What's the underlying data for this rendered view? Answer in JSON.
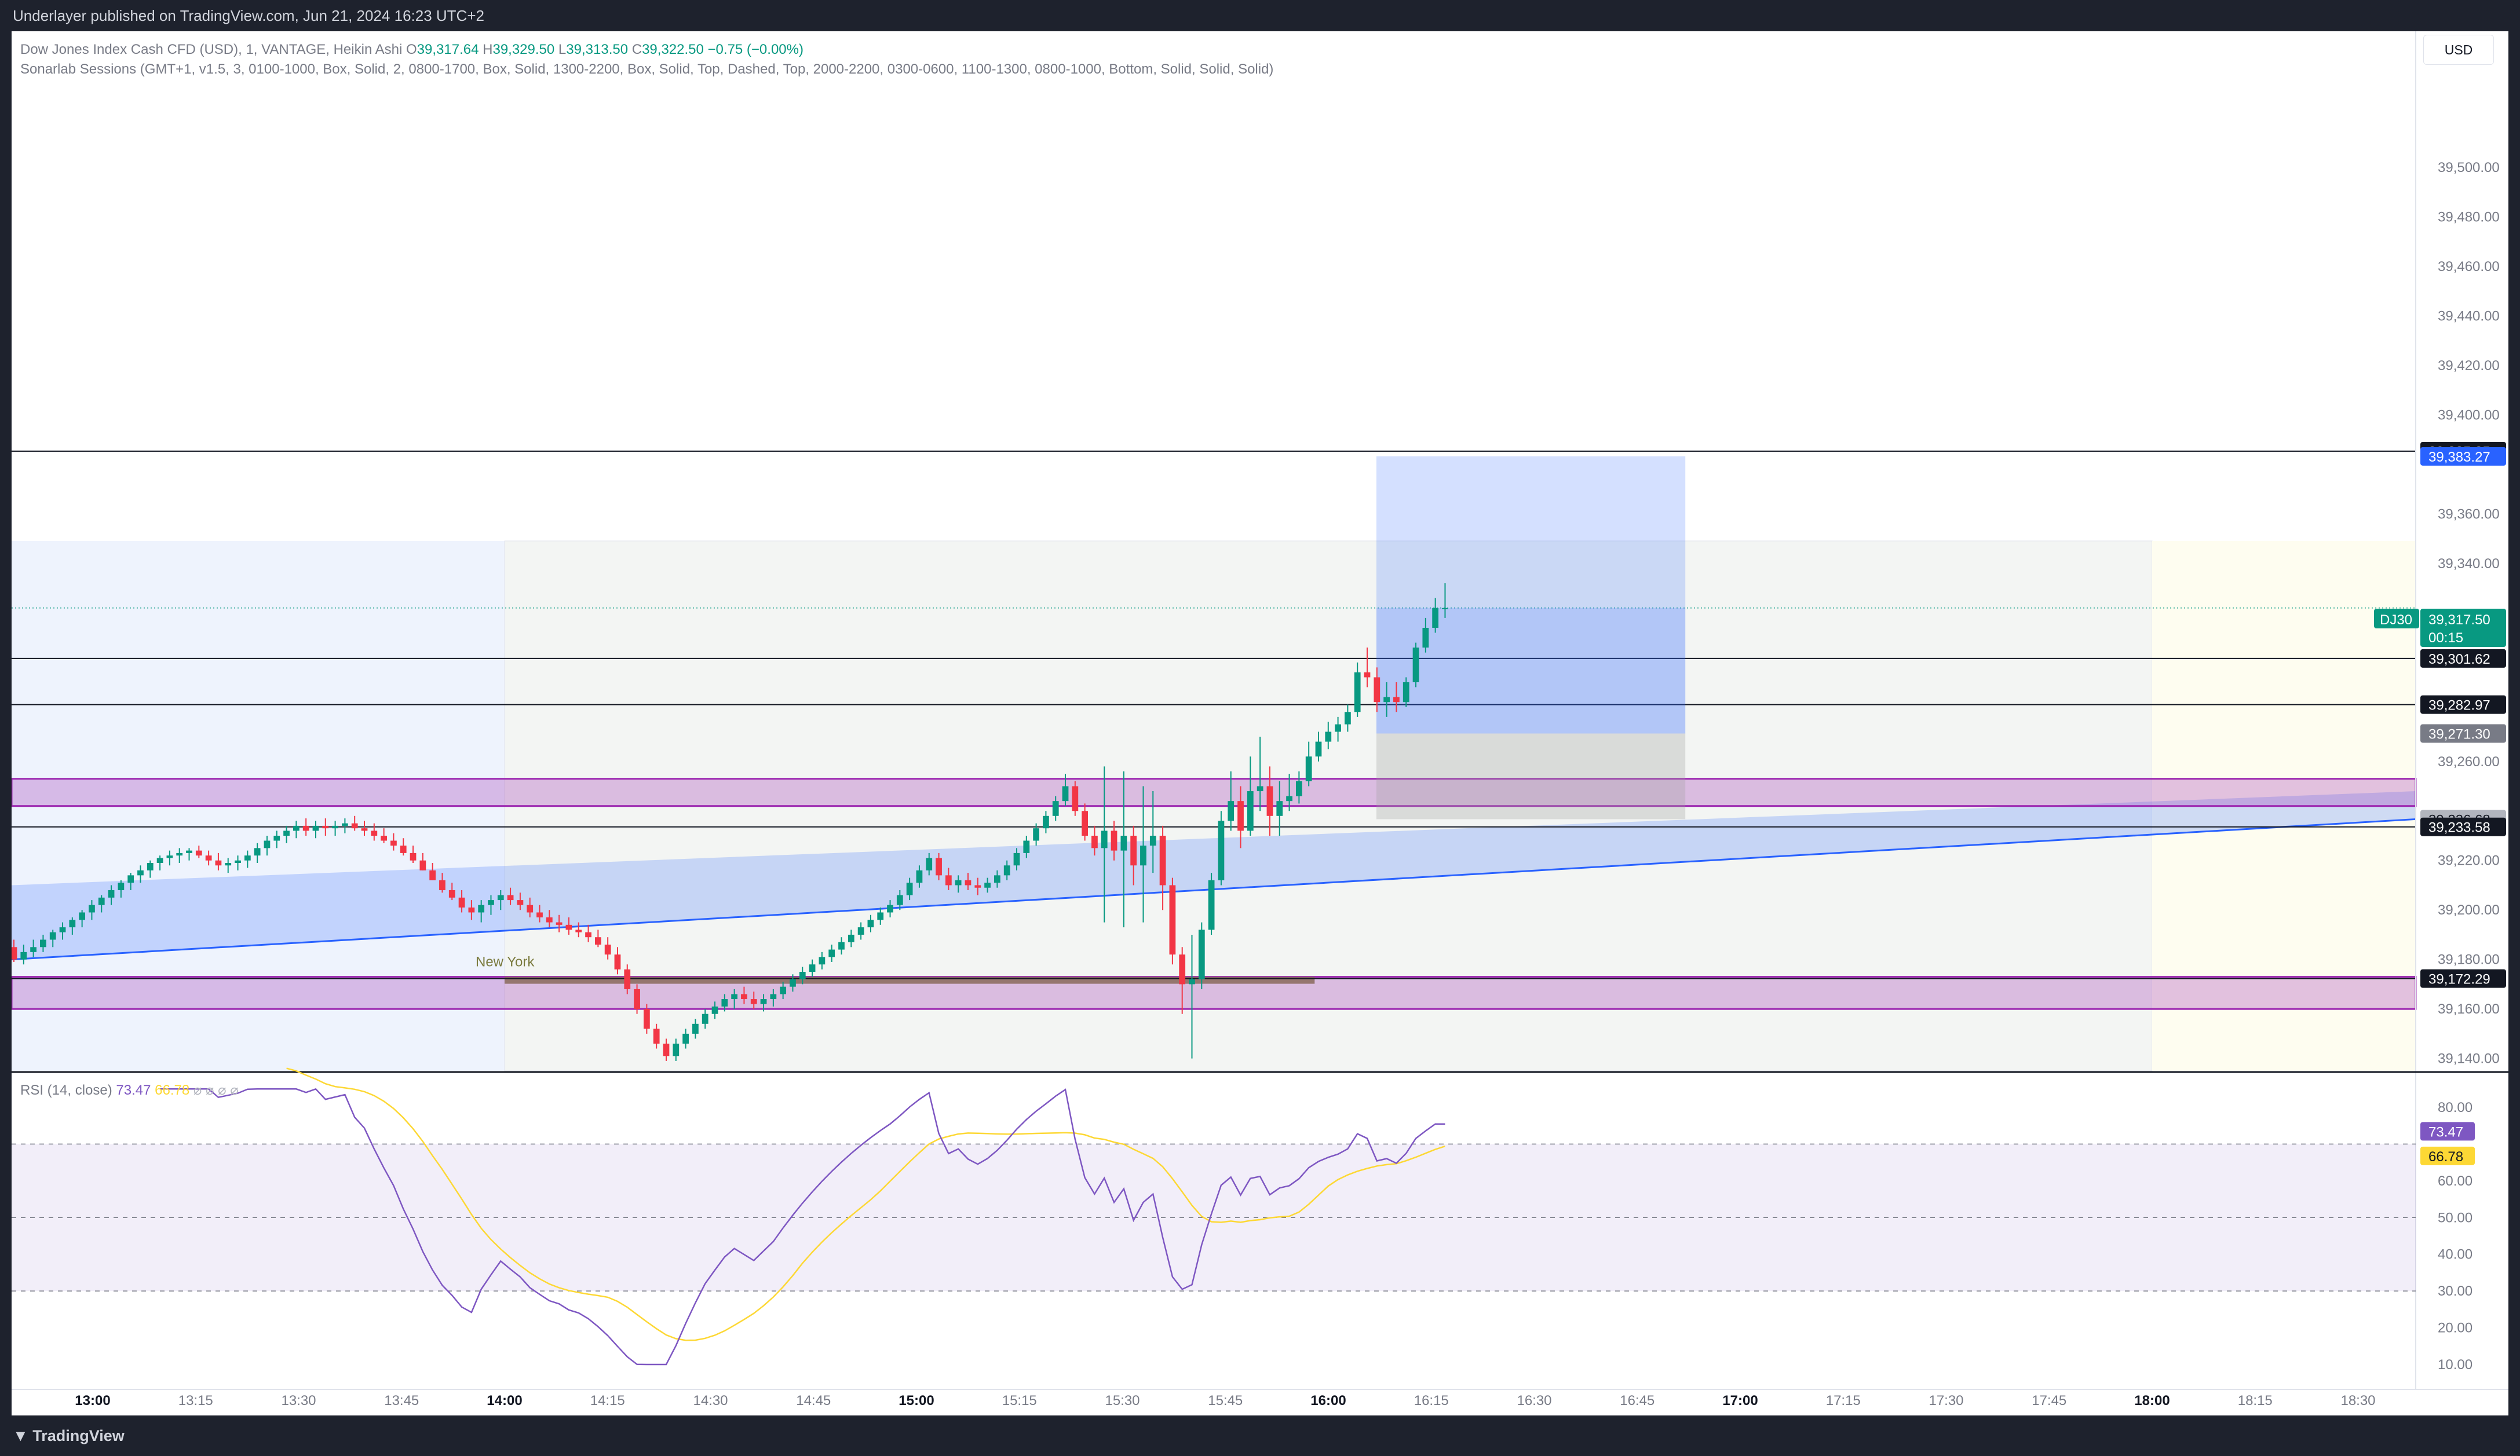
{
  "publisher_line": "Underlayer published on TradingView.com, Jun 21, 2024 16:23 UTC+2",
  "legend": {
    "symbol": "Dow Jones Index Cash CFD (USD), 1, VANTAGE, Heikin Ashi",
    "o_label": "O",
    "o": "39,317.64",
    "h_label": "H",
    "h": "39,329.50",
    "l_label": "L",
    "l": "39,313.50",
    "c_label": "C",
    "c": "39,322.50",
    "change": "−0.75 (−0.00%)",
    "indicator": "Sonarlab Sessions (GMT+1, v1.5, 3, 0100-1000, Box, Solid, 2, 0800-1700, Box, Solid, 1300-2200, Box, Solid, Top, Dashed, Top, 2000-2200, 0300-0600, 1100-1300, 0800-1000, Bottom, Solid, Solid, Solid)"
  },
  "currency": "USD",
  "session_label": "New York",
  "footer_brand": "TradingView",
  "colors": {
    "up": "#089981",
    "down": "#f23645",
    "blue": "#2962ff",
    "purple": "#9c27b0",
    "rsi": "#7e57c2",
    "rsi_ma": "#fdd835",
    "grid_text": "#787b86"
  },
  "price_axis": {
    "ticks": [
      "39,500.00",
      "39,480.00",
      "39,460.00",
      "39,440.00",
      "39,420.00",
      "39,400.00",
      "39,360.00",
      "39,340.00",
      "39,260.00",
      "39,220.00",
      "39,200.00",
      "39,180.00",
      "39,160.00",
      "39,140.00"
    ],
    "tick_values": [
      39500,
      39480,
      39460,
      39440,
      39420,
      39400,
      39360,
      39340,
      39260,
      39220,
      39200,
      39180,
      39160,
      39140
    ]
  },
  "price_labels": [
    {
      "text": "39,385.35",
      "value": 39385.35,
      "bg": "#131722",
      "fg": "#ffffff"
    },
    {
      "text": "39,383.27",
      "value": 39383.27,
      "bg": "#2962ff",
      "fg": "#ffffff"
    },
    {
      "text": "39,301.62",
      "value": 39301.62,
      "bg": "#131722",
      "fg": "#ffffff"
    },
    {
      "text": "39,282.97",
      "value": 39282.97,
      "bg": "#131722",
      "fg": "#ffffff"
    },
    {
      "text": "39,271.30",
      "value": 39271.3,
      "bg": "#787b86",
      "fg": "#ffffff"
    },
    {
      "text": "39,236.68",
      "value": 39236.68,
      "bg": "#b2b5be",
      "fg": "#131722"
    },
    {
      "text": "39,233.58",
      "value": 39233.58,
      "bg": "#131722",
      "fg": "#ffffff"
    },
    {
      "text": "39,172.29",
      "value": 39172.29,
      "bg": "#131722",
      "fg": "#ffffff"
    }
  ],
  "last_price": {
    "symbol": "DJ30",
    "price": "39,317.50",
    "countdown": "00:15",
    "value": 39317.5
  },
  "rsi": {
    "legend_name": "RSI (14, close)",
    "value": "73.47",
    "ma_value": "66.78",
    "axis_ticks": [
      "80.00",
      "60.00",
      "50.00",
      "40.00",
      "30.00",
      "20.00",
      "10.00"
    ],
    "axis_values": [
      80,
      60,
      50,
      40,
      30,
      20,
      10
    ],
    "upper": 70,
    "middle": 50,
    "lower": 30
  },
  "time_axis": {
    "labels": [
      "13:00",
      "13:15",
      "13:30",
      "13:45",
      "14:00",
      "14:15",
      "14:30",
      "14:45",
      "15:00",
      "15:15",
      "15:30",
      "15:45",
      "16:00",
      "16:15",
      "16:30",
      "16:45",
      "17:00",
      "17:15",
      "17:30",
      "17:45",
      "18:00",
      "18:15",
      "18:30"
    ],
    "bold": [
      "13:00",
      "14:00",
      "15:00",
      "16:00",
      "17:00",
      "18:00"
    ]
  },
  "chart_data": {
    "type": "candlestick",
    "chart_style": "Heikin Ashi",
    "timeframe_minutes": 1,
    "x_start": "12:48",
    "x_end_visible": "18:40",
    "y_range": [
      39135,
      39555
    ],
    "candles_ohlc": [
      [
        39185,
        39188,
        39179,
        39180
      ],
      [
        39180,
        39186,
        39178,
        39183
      ],
      [
        39183,
        39188,
        39181,
        39185
      ],
      [
        39185,
        39190,
        39183,
        39188
      ],
      [
        39188,
        39192,
        39185,
        39191
      ],
      [
        39191,
        39195,
        39188,
        39193
      ],
      [
        39193,
        39197,
        39190,
        39196
      ],
      [
        39196,
        39200,
        39193,
        39199
      ],
      [
        39199,
        39204,
        39196,
        39202
      ],
      [
        39202,
        39206,
        39199,
        39205
      ],
      [
        39205,
        39210,
        39202,
        39208
      ],
      [
        39208,
        39212,
        39205,
        39211
      ],
      [
        39211,
        39215,
        39208,
        39214
      ],
      [
        39214,
        39218,
        39211,
        39216
      ],
      [
        39216,
        39220,
        39213,
        39219
      ],
      [
        39219,
        39222,
        39216,
        39221
      ],
      [
        39221,
        39224,
        39218,
        39222
      ],
      [
        39222,
        39225,
        39219,
        39223
      ],
      [
        39223,
        39225,
        39220,
        39224
      ],
      [
        39224,
        39226,
        39221,
        39222
      ],
      [
        39222,
        39224,
        39218,
        39220
      ],
      [
        39220,
        39223,
        39216,
        39218
      ],
      [
        39218,
        39221,
        39215,
        39219
      ],
      [
        39219,
        39222,
        39216,
        39220
      ],
      [
        39220,
        39224,
        39217,
        39222
      ],
      [
        39222,
        39227,
        39219,
        39225
      ],
      [
        39225,
        39230,
        39222,
        39228
      ],
      [
        39228,
        39232,
        39225,
        39230
      ],
      [
        39230,
        39234,
        39227,
        39232
      ],
      [
        39232,
        39236,
        39229,
        39234
      ],
      [
        39234,
        39237,
        39230,
        39232
      ],
      [
        39232,
        39236,
        39229,
        39234
      ],
      [
        39234,
        39237,
        39230,
        39233
      ],
      [
        39233,
        39236,
        39230,
        39234
      ],
      [
        39234,
        39237,
        39231,
        39235
      ],
      [
        39235,
        39238,
        39232,
        39233
      ],
      [
        39233,
        39236,
        39230,
        39232
      ],
      [
        39232,
        39235,
        39228,
        39230
      ],
      [
        39230,
        39233,
        39227,
        39228
      ],
      [
        39228,
        39231,
        39224,
        39226
      ],
      [
        39226,
        39229,
        39222,
        39223
      ],
      [
        39223,
        39226,
        39219,
        39220
      ],
      [
        39220,
        39223,
        39216,
        39216
      ],
      [
        39216,
        39219,
        39212,
        39212
      ],
      [
        39212,
        39215,
        39207,
        39208
      ],
      [
        39208,
        39211,
        39204,
        39205
      ],
      [
        39205,
        39208,
        39199,
        39201
      ],
      [
        39201,
        39204,
        39196,
        39199
      ],
      [
        39199,
        39204,
        39195,
        39202
      ],
      [
        39202,
        39206,
        39198,
        39204
      ],
      [
        39204,
        39208,
        39200,
        39206
      ],
      [
        39206,
        39209,
        39202,
        39204
      ],
      [
        39204,
        39207,
        39200,
        39202
      ],
      [
        39202,
        39205,
        39197,
        39199
      ],
      [
        39199,
        39202,
        39195,
        39197
      ],
      [
        39197,
        39200,
        39193,
        39195
      ],
      [
        39195,
        39198,
        39191,
        39194
      ],
      [
        39194,
        39197,
        39190,
        39192
      ],
      [
        39192,
        39195,
        39189,
        39191
      ],
      [
        39191,
        39194,
        39187,
        39189
      ],
      [
        39189,
        39192,
        39185,
        39186
      ],
      [
        39186,
        39189,
        39180,
        39182
      ],
      [
        39182,
        39185,
        39174,
        39176
      ],
      [
        39176,
        39178,
        39166,
        39168
      ],
      [
        39168,
        39170,
        39158,
        39160
      ],
      [
        39160,
        39162,
        39150,
        39152
      ],
      [
        39152,
        39154,
        39144,
        39146
      ],
      [
        39146,
        39148,
        39139,
        39141
      ],
      [
        39141,
        39148,
        39139,
        39146
      ],
      [
        39146,
        39152,
        39144,
        39150
      ],
      [
        39150,
        39156,
        39148,
        39154
      ],
      [
        39154,
        39160,
        39152,
        39158
      ],
      [
        39158,
        39163,
        39156,
        39161
      ],
      [
        39161,
        39166,
        39159,
        39164
      ],
      [
        39164,
        39168,
        39160,
        39166
      ],
      [
        39166,
        39169,
        39162,
        39164
      ],
      [
        39164,
        39167,
        39160,
        39162
      ],
      [
        39162,
        39166,
        39159,
        39164
      ],
      [
        39164,
        39168,
        39161,
        39166
      ],
      [
        39166,
        39171,
        39164,
        39169
      ],
      [
        39169,
        39174,
        39167,
        39172
      ],
      [
        39172,
        39177,
        39170,
        39175
      ],
      [
        39175,
        39180,
        39173,
        39178
      ],
      [
        39178,
        39183,
        39176,
        39181
      ],
      [
        39181,
        39186,
        39179,
        39184
      ],
      [
        39184,
        39189,
        39182,
        39187
      ],
      [
        39187,
        39192,
        39185,
        39190
      ],
      [
        39190,
        39195,
        39188,
        39193
      ],
      [
        39193,
        39198,
        39191,
        39196
      ],
      [
        39196,
        39201,
        39194,
        39199
      ],
      [
        39199,
        39204,
        39197,
        39202
      ],
      [
        39202,
        39208,
        39200,
        39206
      ],
      [
        39206,
        39213,
        39204,
        39211
      ],
      [
        39211,
        39218,
        39209,
        39216
      ],
      [
        39216,
        39223,
        39214,
        39221
      ],
      [
        39221,
        39223,
        39212,
        39214
      ],
      [
        39214,
        39217,
        39208,
        39210
      ],
      [
        39210,
        39214,
        39207,
        39212
      ],
      [
        39212,
        39215,
        39208,
        39210
      ],
      [
        39210,
        39213,
        39206,
        39209
      ],
      [
        39209,
        39213,
        39207,
        39211
      ],
      [
        39211,
        39216,
        39209,
        39214
      ],
      [
        39214,
        39220,
        39212,
        39218
      ],
      [
        39218,
        39225,
        39216,
        39223
      ],
      [
        39223,
        39230,
        39221,
        39228
      ],
      [
        39228,
        39235,
        39226,
        39233
      ],
      [
        39233,
        39240,
        39231,
        39238
      ],
      [
        39238,
        39246,
        39236,
        39244
      ],
      [
        39244,
        39255,
        39242,
        39250
      ],
      [
        39250,
        39252,
        39238,
        39240
      ],
      [
        39240,
        39243,
        39228,
        39230
      ],
      [
        39230,
        39234,
        39222,
        39225
      ],
      [
        39225,
        39258,
        39195,
        39232
      ],
      [
        39232,
        39236,
        39220,
        39224
      ],
      [
        39224,
        39256,
        39193,
        39230
      ],
      [
        39230,
        39234,
        39210,
        39218
      ],
      [
        39218,
        39250,
        39195,
        39226
      ],
      [
        39226,
        39248,
        39215,
        39230
      ],
      [
        39230,
        39234,
        39200,
        39210
      ],
      [
        39210,
        39213,
        39178,
        39182
      ],
      [
        39182,
        39185,
        39158,
        39170
      ],
      [
        39170,
        39190,
        39140,
        39172
      ],
      [
        39172,
        39195,
        39168,
        39192
      ],
      [
        39192,
        39215,
        39190,
        39212
      ],
      [
        39212,
        39240,
        39210,
        39236
      ],
      [
        39236,
        39256,
        39232,
        39244
      ],
      [
        39244,
        39250,
        39225,
        39232
      ],
      [
        39232,
        39262,
        39230,
        39248
      ],
      [
        39248,
        39270,
        39240,
        39250
      ],
      [
        39250,
        39258,
        39230,
        39238
      ],
      [
        39238,
        39252,
        39230,
        39244
      ],
      [
        39244,
        39255,
        39240,
        39246
      ],
      [
        39246,
        39256,
        39243,
        39252
      ],
      [
        39252,
        39268,
        39250,
        39262
      ],
      [
        39262,
        39272,
        39260,
        39268
      ],
      [
        39268,
        39276,
        39265,
        39272
      ],
      [
        39272,
        39278,
        39268,
        39275
      ],
      [
        39275,
        39283,
        39272,
        39280
      ],
      [
        39280,
        39300,
        39278,
        39296
      ],
      [
        39296,
        39306,
        39290,
        39294
      ],
      [
        39294,
        39298,
        39280,
        39284
      ],
      [
        39284,
        39292,
        39278,
        39286
      ],
      [
        39286,
        39292,
        39280,
        39284
      ],
      [
        39284,
        39294,
        39282,
        39292
      ],
      [
        39292,
        39308,
        39290,
        39306
      ],
      [
        39306,
        39318,
        39304,
        39314
      ],
      [
        39314,
        39326,
        39312,
        39322
      ],
      [
        39322,
        39332,
        39318,
        39322
      ]
    ],
    "levels": [
      39385.35,
      39301.62,
      39282.97,
      39233.58,
      39172.29
    ],
    "zones": [
      {
        "top": 39253,
        "bottom": 39242,
        "color": "#9c27b0"
      },
      {
        "top": 39173,
        "bottom": 39160,
        "color": "#9c27b0"
      }
    ],
    "position_tool": {
      "start": "16:07",
      "end": "16:52",
      "target": 39383.27,
      "entry": 39322,
      "stop": 39271.3,
      "stop_bottom": 39236.68
    },
    "trendline": {
      "from": [
        "12:48",
        39180
      ],
      "to": [
        "18:40",
        39236.68
      ]
    }
  }
}
